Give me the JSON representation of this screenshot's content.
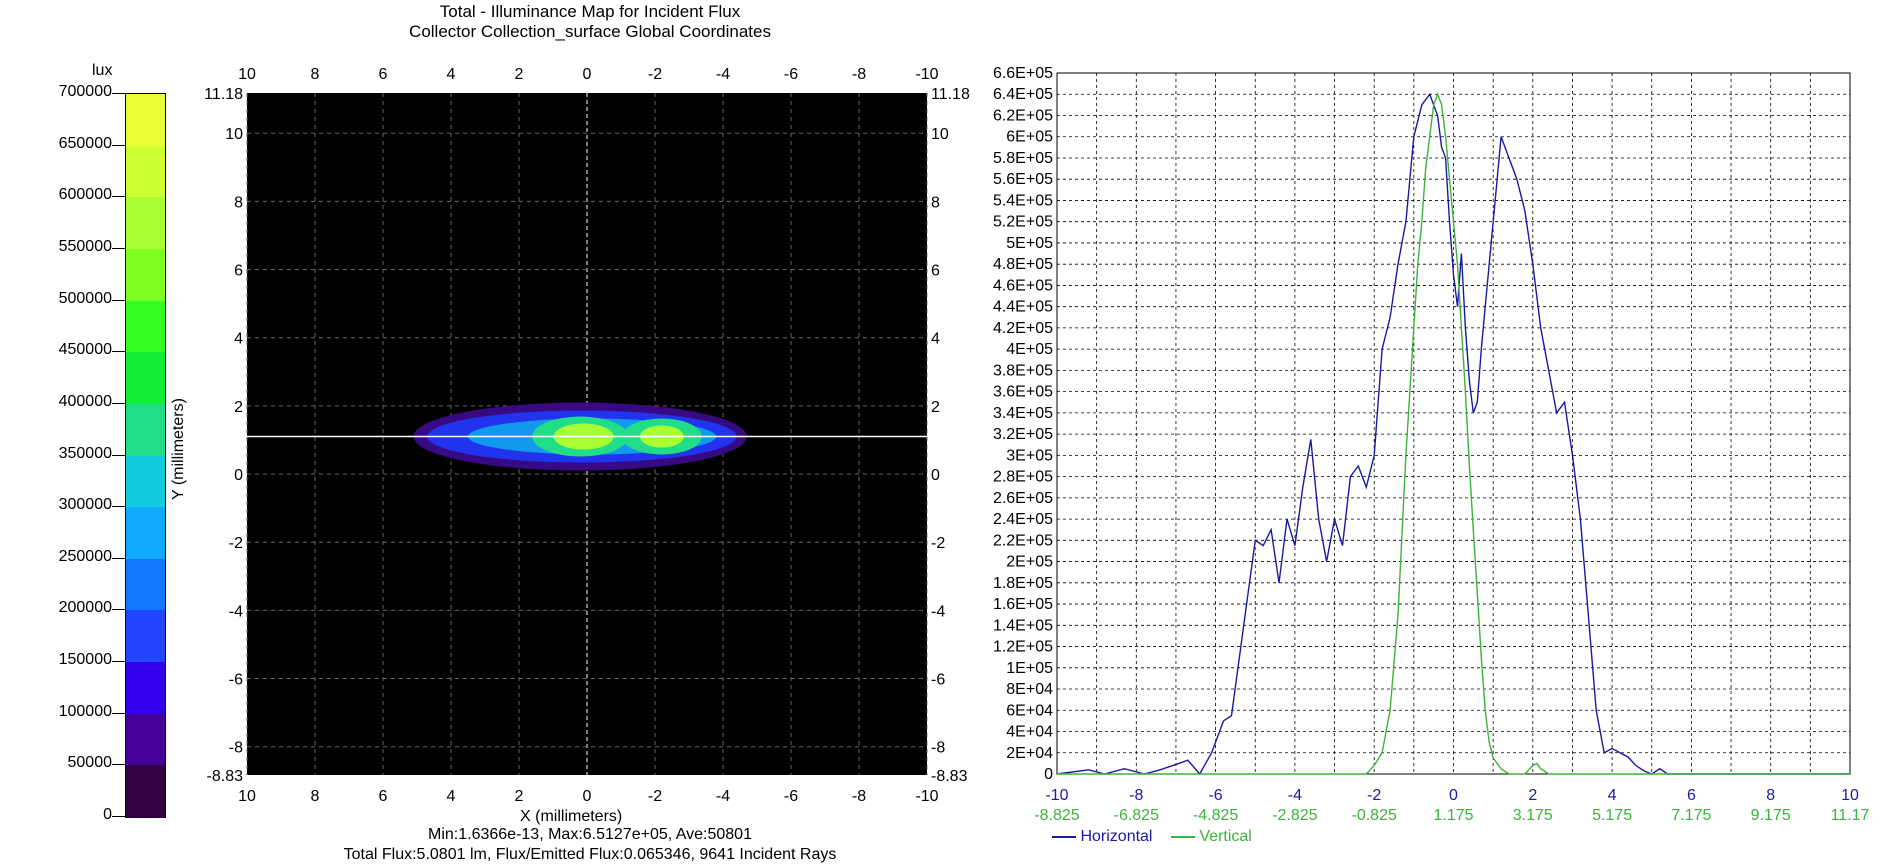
{
  "title": {
    "line1": "Total - Illuminance Map for Incident Flux",
    "line2": "Collector Collection_surface    Global Coordinates"
  },
  "colorbar": {
    "unit": "lux",
    "ticks": [
      "700000",
      "650000",
      "600000",
      "550000",
      "500000",
      "450000",
      "400000",
      "350000",
      "300000",
      "250000",
      "200000",
      "150000",
      "100000",
      "50000",
      "0"
    ],
    "colors": [
      "#e8ff33",
      "#cdff33",
      "#aaff33",
      "#7dff22",
      "#33ff22",
      "#11ee33",
      "#22dd88",
      "#11ccdd",
      "#11aaff",
      "#1177ff",
      "#2244ff",
      "#3300ee",
      "#440099",
      "#330044",
      "#000000"
    ]
  },
  "map": {
    "top_x_ticks": [
      "10",
      "8",
      "6",
      "4",
      "2",
      "0",
      "-2",
      "-4",
      "-6",
      "-8",
      "-10"
    ],
    "bottom_x_ticks": [
      "10",
      "8",
      "6",
      "4",
      "2",
      "0",
      "-2",
      "-4",
      "-6",
      "-8",
      "-10"
    ],
    "left_y_ticks": [
      "11.18",
      "10",
      "8",
      "6",
      "4",
      "2",
      "0",
      "-2",
      "-4",
      "-6",
      "-8",
      "-8.83"
    ],
    "right_y_ticks": [
      "11.18",
      "10",
      "8",
      "6",
      "4",
      "2",
      "0",
      "-2",
      "-4",
      "-6",
      "-8",
      "-8.83"
    ],
    "xlabel": "X (millimeters)",
    "ylabel": "Y (millimeters)",
    "stats_line1": "Min:1.6366e-13, Max:6.5127e+05, Ave:50801",
    "stats_line2": "Total Flux:5.0801 lm, Flux/Emitted Flux:0.065346, 9641 Incident Rays"
  },
  "chart_data": {
    "type": "line",
    "title": "",
    "xlabel": "",
    "ylabel": "",
    "xlim": [
      -10,
      10
    ],
    "ylim": [
      0,
      660000
    ],
    "grid": true,
    "legend": "bottom-left",
    "y_tick_labels": [
      "0",
      "2E+04",
      "4E+04",
      "6E+04",
      "8E+04",
      "1E+05",
      "1.2E+05",
      "1.4E+05",
      "1.6E+05",
      "1.8E+05",
      "2E+05",
      "2.2E+05",
      "2.4E+05",
      "2.6E+05",
      "2.8E+05",
      "3E+05",
      "3.2E+05",
      "3.4E+05",
      "3.6E+05",
      "3.8E+05",
      "4E+05",
      "4.2E+05",
      "4.4E+05",
      "4.6E+05",
      "4.8E+05",
      "5E+05",
      "5.2E+05",
      "5.4E+05",
      "5.6E+05",
      "5.8E+05",
      "6E+05",
      "6.2E+05",
      "6.4E+05",
      "6.6E+05"
    ],
    "x_tick_labels_horizontal": [
      "-10",
      "-8",
      "-6",
      "-4",
      "-2",
      "0",
      "2",
      "4",
      "6",
      "8",
      "10"
    ],
    "x_tick_labels_vertical": [
      "-8.825",
      "-6.825",
      "-4.825",
      "-2.825",
      "-0.825",
      "1.175",
      "3.175",
      "5.175",
      "7.175",
      "9.175",
      "11.17"
    ],
    "series": [
      {
        "name": "Horizontal",
        "color": "#1a1aa0",
        "x": [
          -10,
          -9.2,
          -8.8,
          -8.3,
          -7.8,
          -7.4,
          -7.0,
          -6.7,
          -6.4,
          -6.1,
          -5.8,
          -5.6,
          -5.4,
          -5.2,
          -5.0,
          -4.8,
          -4.6,
          -4.4,
          -4.2,
          -4.0,
          -3.8,
          -3.6,
          -3.4,
          -3.2,
          -3.0,
          -2.8,
          -2.6,
          -2.4,
          -2.2,
          -2.0,
          -1.8,
          -1.6,
          -1.4,
          -1.2,
          -1.0,
          -0.8,
          -0.6,
          -0.4,
          -0.3,
          -0.2,
          -0.1,
          0.0,
          0.1,
          0.2,
          0.3,
          0.4,
          0.5,
          0.6,
          0.7,
          0.8,
          1.0,
          1.2,
          1.4,
          1.6,
          1.8,
          2.0,
          2.2,
          2.4,
          2.6,
          2.8,
          3.0,
          3.2,
          3.4,
          3.6,
          3.8,
          4.0,
          4.2,
          4.4,
          4.6,
          4.8,
          5.0,
          5.2,
          5.4,
          5.6,
          5.8,
          6.0,
          6.4,
          6.7,
          7.0,
          10
        ],
        "y": [
          0,
          4000,
          0,
          5000,
          0,
          4000,
          9000,
          13000,
          0,
          20000,
          50000,
          55000,
          110000,
          165000,
          220000,
          215000,
          230000,
          180000,
          240000,
          215000,
          270000,
          315000,
          240000,
          200000,
          240000,
          215000,
          280000,
          290000,
          270000,
          300000,
          400000,
          430000,
          480000,
          520000,
          600000,
          630000,
          640000,
          620000,
          590000,
          580000,
          520000,
          470000,
          440000,
          490000,
          420000,
          370000,
          340000,
          350000,
          400000,
          440000,
          520000,
          600000,
          580000,
          560000,
          530000,
          480000,
          420000,
          380000,
          340000,
          350000,
          300000,
          240000,
          150000,
          60000,
          20000,
          24000,
          20000,
          16000,
          8000,
          3000,
          0,
          5000,
          0,
          0,
          0,
          0,
          0,
          0,
          0,
          0
        ],
        "x_shift": [
          -10,
          -9.2,
          -8.8,
          -8.3,
          -7.8,
          -7.4,
          -7.0,
          -6.7,
          -6.4,
          -6.1,
          -5.8,
          -5.6,
          -5.4,
          -5.2,
          -5.0,
          -4.8,
          -4.6,
          -4.4,
          -4.2,
          -4.0,
          -3.8,
          -3.6,
          -3.4,
          -3.2,
          -3.0,
          -2.8,
          -2.6,
          -2.4,
          -2.2,
          -2.0,
          -1.8,
          -1.6,
          -1.4,
          -1.2,
          -1.0,
          -0.8,
          -0.6,
          -0.4,
          -0.3,
          -0.2,
          -0.1,
          0.0,
          0.1,
          0.2,
          0.3,
          0.4,
          0.5,
          0.6,
          0.7,
          0.8,
          1.0,
          1.2,
          1.4,
          1.6,
          1.8,
          2.0,
          2.2,
          2.4,
          2.6,
          2.8,
          3.0,
          3.2,
          3.4,
          3.6,
          3.8,
          4.0,
          4.2,
          4.4,
          4.6,
          4.8,
          5.0,
          5.2,
          5.4,
          5.6,
          5.8,
          6.0,
          6.4,
          6.7,
          7.0,
          10
        ]
      },
      {
        "name": "Vertical",
        "color": "#3cb43c",
        "x": [
          -10,
          -2.2,
          -2.0,
          -1.8,
          -1.6,
          -1.4,
          -1.2,
          -1.0,
          -0.9,
          -0.8,
          -0.7,
          -0.6,
          -0.5,
          -0.4,
          -0.3,
          -0.2,
          -0.1,
          0.0,
          0.1,
          0.2,
          0.3,
          0.4,
          0.5,
          0.6,
          0.7,
          0.8,
          0.9,
          1.0,
          1.2,
          1.4,
          1.6,
          1.8,
          2.0,
          2.1,
          2.2,
          2.4,
          10
        ],
        "y": [
          0,
          0,
          8000,
          20000,
          60000,
          150000,
          300000,
          420000,
          480000,
          520000,
          570000,
          600000,
          630000,
          640000,
          630000,
          600000,
          560000,
          520000,
          480000,
          420000,
          360000,
          290000,
          230000,
          170000,
          110000,
          60000,
          30000,
          15000,
          5000,
          0,
          0,
          0,
          8000,
          10000,
          5000,
          0,
          0
        ]
      }
    ]
  }
}
